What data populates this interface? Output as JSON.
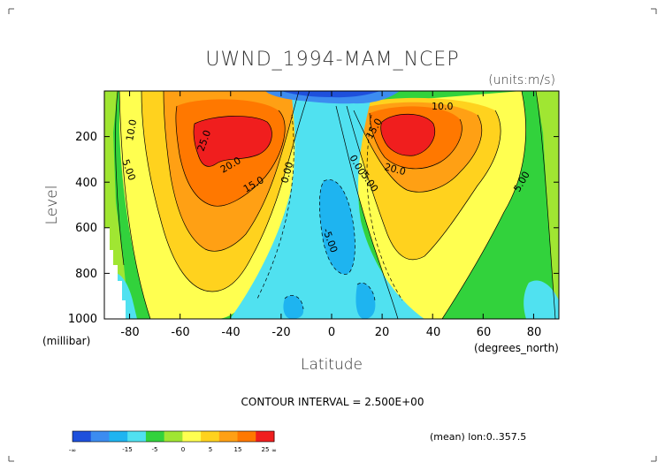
{
  "chart_data": {
    "type": "contour",
    "title": "UWND_1994-MAM_NCEP",
    "units": "(units:m/s)",
    "ylabel": "Level",
    "yunit": "(millibar)",
    "xlabel": "Latitude",
    "xunit": "(degrees_north)",
    "x_ticks": [
      "-80",
      "-60",
      "-40",
      "-20",
      "0",
      "20",
      "40",
      "60",
      "80"
    ],
    "y_ticks": [
      "200",
      "400",
      "600",
      "800",
      "1000"
    ],
    "xlim": [
      -90,
      90
    ],
    "ylim": [
      1000,
      0
    ],
    "y_inverted": true,
    "contour_interval": "CONTOUR INTERVAL = 2.500E+00",
    "footer_note": "(mean) lon:0..357.5",
    "contour_labels": [
      "25.0",
      "20.0",
      "15.0",
      "10.0",
      "5.00",
      "0.00",
      "-5.00",
      "15.0",
      "20.0",
      "10.0",
      "0.00",
      "5.00",
      "5.00"
    ],
    "jets": [
      {
        "lat": -32,
        "level": 190,
        "max_ms": 27.5
      },
      {
        "lat": 30,
        "level": 190,
        "max_ms": 27.5
      }
    ],
    "colorbar": {
      "labels": [
        "-∞",
        "-15",
        "-5",
        "0",
        "5",
        "15",
        "25",
        "∞"
      ],
      "colors": [
        "#1e50dc",
        "#3c8cf0",
        "#1eb4f0",
        "#50e1f0",
        "#32d23c",
        "#a0e632",
        "#ffff50",
        "#ffd21e",
        "#ffa014",
        "#ff7800",
        "#f01e1e"
      ]
    }
  }
}
